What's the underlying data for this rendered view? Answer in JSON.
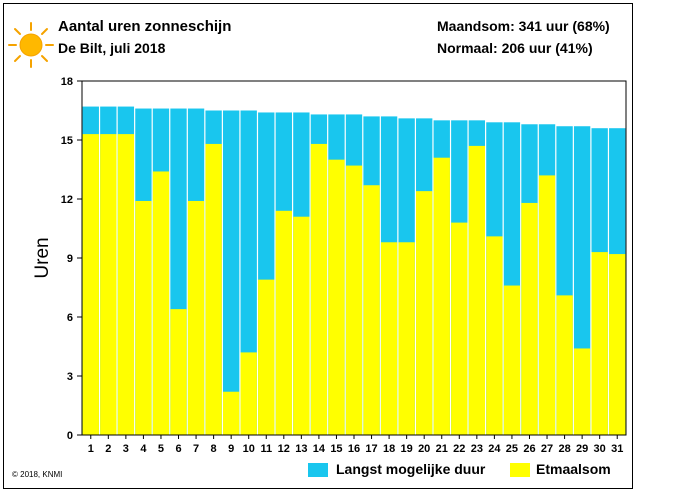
{
  "header": {
    "title": "Aantal uren zonneschijn",
    "subtitle": "De Bilt, juli 2018",
    "month_total": "Maandsom: 341 uur (68%)",
    "normal_total": "Normaal: 206 uur (41%)"
  },
  "footer": {
    "copyright": "© 2018, KNMI"
  },
  "icons": {
    "sun": "sun-icon"
  },
  "colors": {
    "max_duration": "#19c6ee",
    "daily_sum": "#ffff00"
  },
  "chart_data": {
    "type": "bar",
    "ylabel": "Uren",
    "xlabel": "",
    "ylim": [
      0,
      18
    ],
    "yticks": [
      0,
      3,
      6,
      9,
      12,
      15,
      18
    ],
    "grid": false,
    "legend": "bottom",
    "categories": [
      "1",
      "2",
      "3",
      "4",
      "5",
      "6",
      "7",
      "8",
      "9",
      "10",
      "11",
      "12",
      "13",
      "14",
      "15",
      "16",
      "17",
      "18",
      "19",
      "20",
      "21",
      "22",
      "23",
      "24",
      "25",
      "26",
      "27",
      "28",
      "29",
      "30",
      "31"
    ],
    "series": [
      {
        "name": "Langst mogelijke duur",
        "values": [
          16.7,
          16.7,
          16.7,
          16.6,
          16.6,
          16.6,
          16.6,
          16.5,
          16.5,
          16.5,
          16.4,
          16.4,
          16.4,
          16.3,
          16.3,
          16.3,
          16.2,
          16.2,
          16.1,
          16.1,
          16.0,
          16.0,
          16.0,
          15.9,
          15.9,
          15.8,
          15.8,
          15.7,
          15.7,
          15.6,
          15.6
        ]
      },
      {
        "name": "Etmaalsom",
        "values": [
          15.3,
          15.3,
          15.3,
          11.9,
          13.4,
          6.4,
          11.9,
          14.8,
          2.2,
          4.2,
          7.9,
          11.4,
          11.1,
          14.8,
          14.0,
          13.7,
          12.7,
          9.8,
          9.8,
          12.4,
          14.1,
          10.8,
          14.7,
          10.1,
          7.6,
          11.8,
          13.2,
          7.1,
          4.4,
          9.3,
          9.2
        ]
      }
    ]
  }
}
